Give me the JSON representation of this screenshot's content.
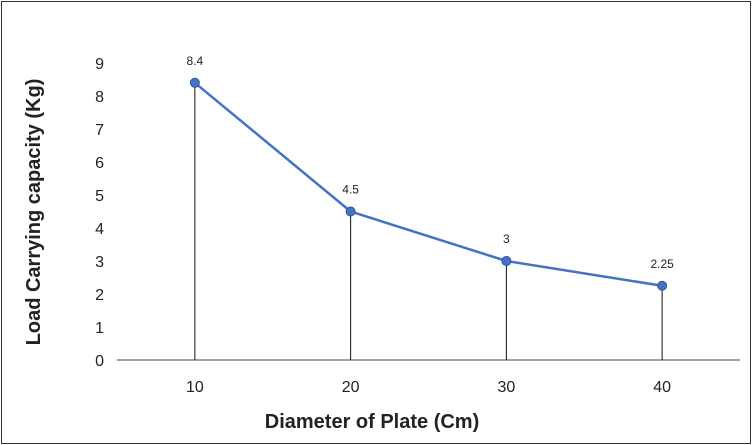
{
  "chart_data": {
    "type": "line",
    "xlabel": "Diameter of Plate (Cm)",
    "ylabel": "Load Carrying capacity (Kg)",
    "categories": [
      "10",
      "20",
      "30",
      "40"
    ],
    "series": [
      {
        "values": [
          8.4,
          4.5,
          3,
          2.25
        ],
        "data_labels": [
          "8.4",
          "4.5",
          "3",
          "2.25"
        ],
        "color": "#4472c4"
      }
    ],
    "y_ticks": [
      "0",
      "1",
      "2",
      "3",
      "4",
      "5",
      "6",
      "7",
      "8",
      "9"
    ],
    "ylim": [
      0,
      9
    ],
    "grid": false,
    "drop_lines": true,
    "legend": "none"
  }
}
